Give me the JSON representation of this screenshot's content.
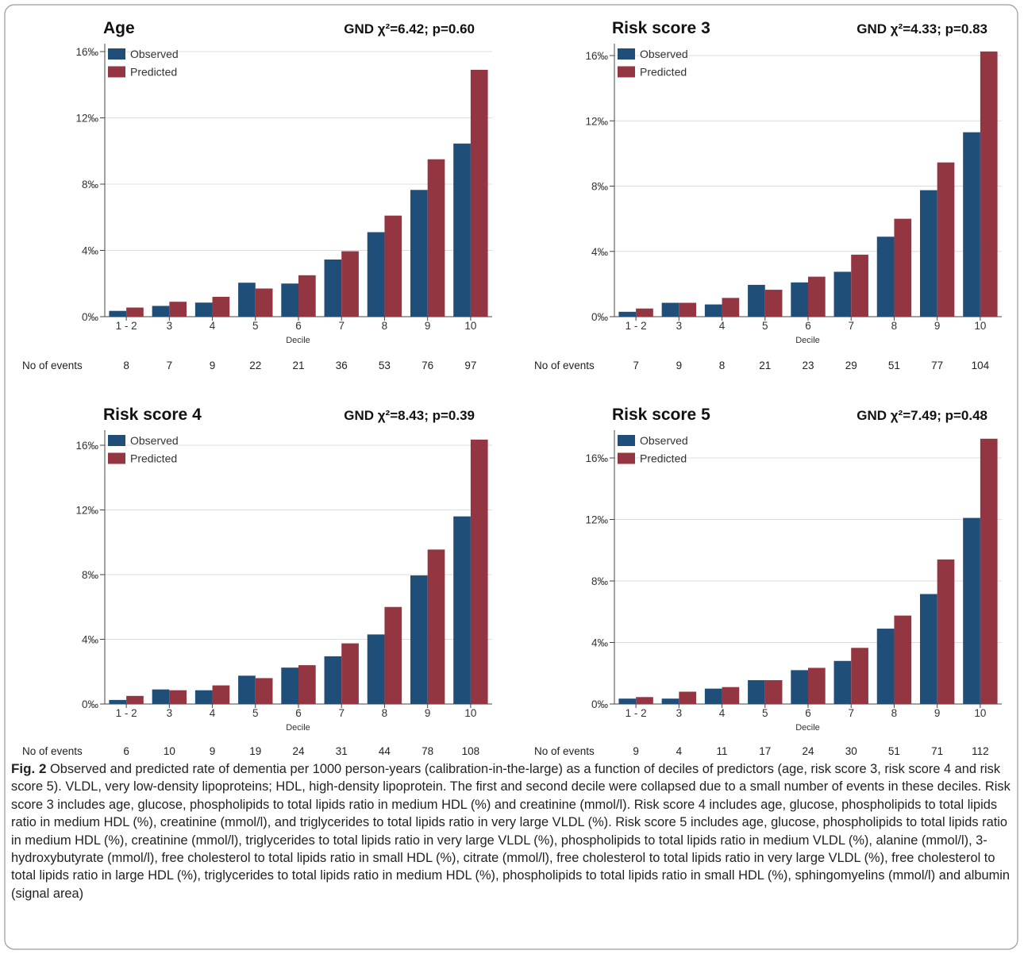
{
  "colors": {
    "observed": "#1f4e79",
    "predicted": "#943642",
    "axis": "#444444",
    "grid": "#dcdcdc"
  },
  "events_label": "No of events",
  "caption": {
    "label": "Fig. 2",
    "text": "Observed and predicted rate of dementia per 1000 person-years (calibration-in-the-large) as a function of deciles of predictors (age, risk score 3, risk score 4 and risk score 5). VLDL, very low-density lipoproteins; HDL, high-density lipoprotein. The first and second decile were collapsed due to a small number of events in these deciles. Risk score 3 includes age, glucose, phospholipids to total lipids ratio in medium HDL (%) and creatinine (mmol/l). Risk score 4 includes age, glucose, phospholipids to total lipids ratio in medium HDL (%), creatinine (mmol/l), and triglycerides to total lipids ratio in very large VLDL (%). Risk score 5 includes age, glucose, phospholipids to total lipids ratio in medium HDL (%), creatinine (mmol/l), triglycerides to total lipids ratio in very large VLDL (%), phospholipids to total lipids ratio in medium VLDL (%), alanine (mmol/l), 3-hydroxybutyrate (mmol/l), free cholesterol to total lipids ratio in small HDL (%), citrate (mmol/l), free cholesterol to total lipids ratio in very large VLDL (%), free cholesterol to total lipids ratio in large HDL (%), triglycerides to total lipids ratio in medium HDL (%), phospholipids to total lipids ratio in small HDL (%), sphingomyelins (mmol/l) and albumin (signal area)"
  },
  "chart_data": [
    {
      "type": "bar",
      "title": "Age",
      "stat": "GND χ²=6.42; p=0.60",
      "xlabel": "Decile",
      "categories": [
        "1 - 2",
        "3",
        "4",
        "5",
        "6",
        "7",
        "8",
        "9",
        "10"
      ],
      "yticks": [
        "0‰",
        "4‰",
        "8‰",
        "12‰",
        "16‰"
      ],
      "ylim": [
        0,
        16.3
      ],
      "legend_position": "top-left",
      "series": [
        {
          "name": "Observed",
          "values": [
            0.35,
            0.65,
            0.85,
            2.05,
            2.0,
            3.45,
            5.1,
            7.65,
            10.45
          ]
        },
        {
          "name": "Predicted",
          "values": [
            0.55,
            0.9,
            1.2,
            1.7,
            2.5,
            3.95,
            6.1,
            9.5,
            14.9
          ]
        }
      ],
      "events": [
        "8",
        "7",
        "9",
        "22",
        "21",
        "36",
        "53",
        "76",
        "97"
      ]
    },
    {
      "type": "bar",
      "title": "Risk score 3",
      "stat": "GND χ²=4.33; p=0.83",
      "xlabel": "Decile",
      "categories": [
        "1 - 2",
        "3",
        "4",
        "5",
        "6",
        "7",
        "8",
        "9",
        "10"
      ],
      "yticks": [
        "0‰",
        "4‰",
        "8‰",
        "12‰",
        "16‰"
      ],
      "ylim": [
        0,
        16.3
      ],
      "legend_position": "top-left",
      "series": [
        {
          "name": "Observed",
          "values": [
            0.3,
            0.85,
            0.75,
            1.95,
            2.1,
            2.75,
            4.9,
            7.75,
            11.3
          ]
        },
        {
          "name": "Predicted",
          "values": [
            0.5,
            0.85,
            1.15,
            1.65,
            2.45,
            3.8,
            6.0,
            9.45,
            16.25
          ]
        }
      ],
      "events": [
        "7",
        "9",
        "8",
        "21",
        "23",
        "29",
        "51",
        "77",
        "104"
      ]
    },
    {
      "type": "bar",
      "title": "Risk score 4",
      "stat": "GND χ²=8.43; p=0.39",
      "xlabel": "Decile",
      "categories": [
        "1 - 2",
        "3",
        "4",
        "5",
        "6",
        "7",
        "8",
        "9",
        "10"
      ],
      "yticks": [
        "0‰",
        "4‰",
        "8‰",
        "12‰",
        "16‰"
      ],
      "ylim": [
        0,
        16.3
      ],
      "legend_position": "top-left",
      "series": [
        {
          "name": "Observed",
          "values": [
            0.25,
            0.9,
            0.85,
            1.75,
            2.25,
            2.95,
            4.3,
            7.95,
            11.6
          ]
        },
        {
          "name": "Predicted",
          "values": [
            0.5,
            0.85,
            1.15,
            1.6,
            2.4,
            3.75,
            6.0,
            9.55,
            16.35
          ]
        }
      ],
      "events": [
        "6",
        "10",
        "9",
        "19",
        "24",
        "31",
        "44",
        "78",
        "108"
      ]
    },
    {
      "type": "bar",
      "title": "Risk score 5",
      "stat": "GND χ²=7.49; p=0.48",
      "xlabel": "Decile",
      "categories": [
        "1 - 2",
        "3",
        "4",
        "5",
        "6",
        "7",
        "8",
        "9",
        "10"
      ],
      "yticks": [
        "0‰",
        "4‰",
        "8‰",
        "12‰",
        "16‰"
      ],
      "ylim": [
        0,
        18.1
      ],
      "legend_position": "top-left",
      "series": [
        {
          "name": "Observed",
          "values": [
            0.35,
            0.35,
            1.0,
            1.55,
            2.2,
            2.8,
            4.9,
            7.15,
            12.1
          ]
        },
        {
          "name": "Predicted",
          "values": [
            0.45,
            0.8,
            1.1,
            1.55,
            2.35,
            3.65,
            5.75,
            9.4,
            17.25
          ]
        }
      ],
      "events": [
        "9",
        "4",
        "11",
        "17",
        "24",
        "30",
        "51",
        "71",
        "112"
      ]
    }
  ]
}
